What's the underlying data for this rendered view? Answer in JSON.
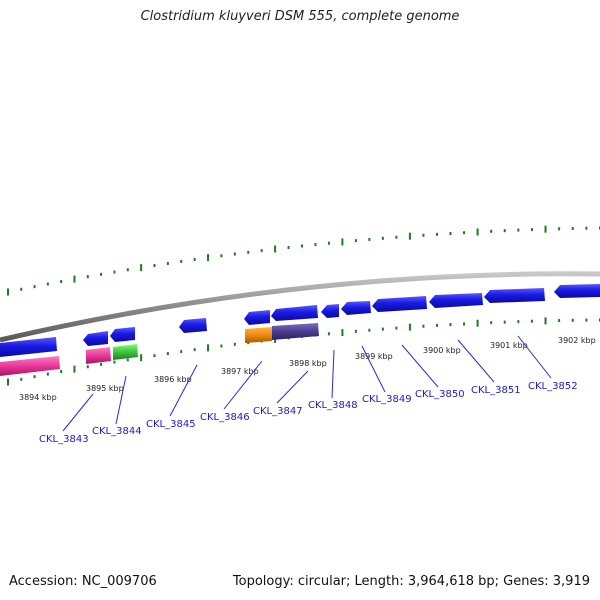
{
  "title": "Clostridium kluyveri DSM 555, complete genome",
  "footer": {
    "accession": "Accession: NC_009706",
    "topology": "Topology: circular; Length: 3,964,618 bp; Genes: 3,919"
  },
  "colors": {
    "gene_forward": "#1a1ae6",
    "gene_pink": "#e8399a",
    "gene_green": "#3ec43e",
    "gene_orange": "#f08a10",
    "gene_purple": "#4a3d8f",
    "backbone": "#8a8a8a",
    "ticks": "#1f7a1f",
    "label": "#1a1acc"
  },
  "kbp_labels": [
    "3894 kbp",
    "3895 kbp",
    "3896 kbp",
    "3897 kbp",
    "3898 kbp",
    "3899 kbp",
    "3900 kbp",
    "3901 kbp",
    "3902 kbp"
  ],
  "gene_labels": [
    "CKL_3843",
    "CKL_3844",
    "CKL_3845",
    "CKL_3846",
    "CKL_3847",
    "CKL_3848",
    "CKL_3849",
    "CKL_3850",
    "CKL_3851",
    "CKL_3852"
  ]
}
